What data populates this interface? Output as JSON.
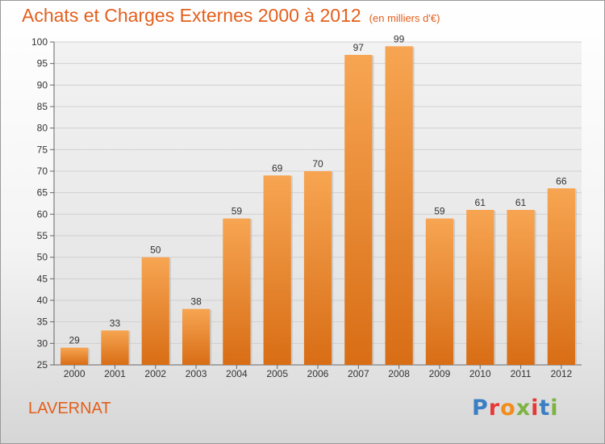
{
  "title": {
    "main": "Achats et Charges Externes 2000 à 2012",
    "unit": "(en milliers d'€)"
  },
  "place": "LAVERNAT",
  "logo": {
    "text": "Proxiti",
    "colors": [
      "#3a7fc4",
      "#e53935",
      "#f28c1b",
      "#7cb342",
      "#e53935",
      "#3a7fc4",
      "#7cb342"
    ]
  },
  "colors": {
    "accent": "#e35f1c",
    "bar_top": "#f7a552",
    "bar_bottom": "#d86d15",
    "grid": "#d0d0d0"
  },
  "chart_data": {
    "type": "bar",
    "title": "Achats et Charges Externes 2000 à 2012",
    "subtitle": "(en milliers d'€)",
    "categories": [
      "2000",
      "2001",
      "2002",
      "2003",
      "2004",
      "2005",
      "2006",
      "2007",
      "2008",
      "2009",
      "2010",
      "2011",
      "2012"
    ],
    "values": [
      29,
      33,
      50,
      38,
      59,
      69,
      70,
      97,
      99,
      59,
      61,
      61,
      66
    ],
    "ylim": [
      25,
      100
    ],
    "yticks": [
      25,
      30,
      35,
      40,
      45,
      50,
      55,
      60,
      65,
      70,
      75,
      80,
      85,
      90,
      95,
      100
    ],
    "grid": true,
    "data_labels": true
  }
}
